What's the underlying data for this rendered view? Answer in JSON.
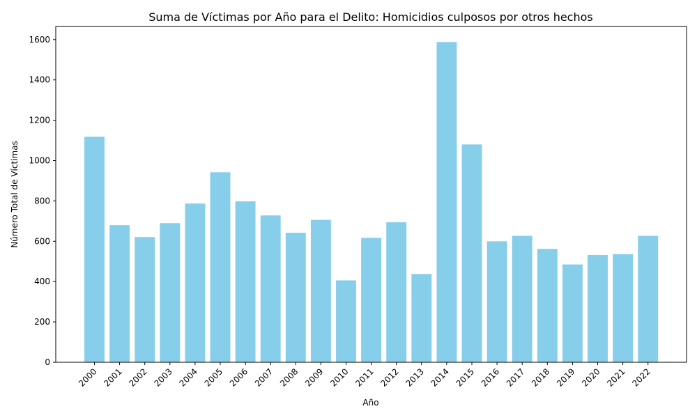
{
  "chart_data": {
    "type": "bar",
    "title": "Suma de Víctimas por Año para el Delito: Homicidios culposos por otros hechos",
    "xlabel": "Año",
    "ylabel": "Número Total de Víctimas",
    "categories": [
      "2000",
      "2001",
      "2002",
      "2003",
      "2004",
      "2005",
      "2006",
      "2007",
      "2008",
      "2009",
      "2010",
      "2011",
      "2012",
      "2013",
      "2014",
      "2015",
      "2016",
      "2017",
      "2018",
      "2019",
      "2020",
      "2021",
      "2022"
    ],
    "values": [
      1118,
      680,
      621,
      690,
      787,
      942,
      798,
      728,
      642,
      706,
      406,
      617,
      694,
      438,
      1588,
      1080,
      600,
      627,
      562,
      485,
      532,
      536,
      627
    ],
    "yticks": [
      "0",
      "200",
      "400",
      "600",
      "800",
      "1000",
      "1200",
      "1400",
      "1600"
    ],
    "ylim": [
      0,
      1665
    ],
    "bar_color": "#87CEEB",
    "grid": false,
    "legend": "none"
  }
}
